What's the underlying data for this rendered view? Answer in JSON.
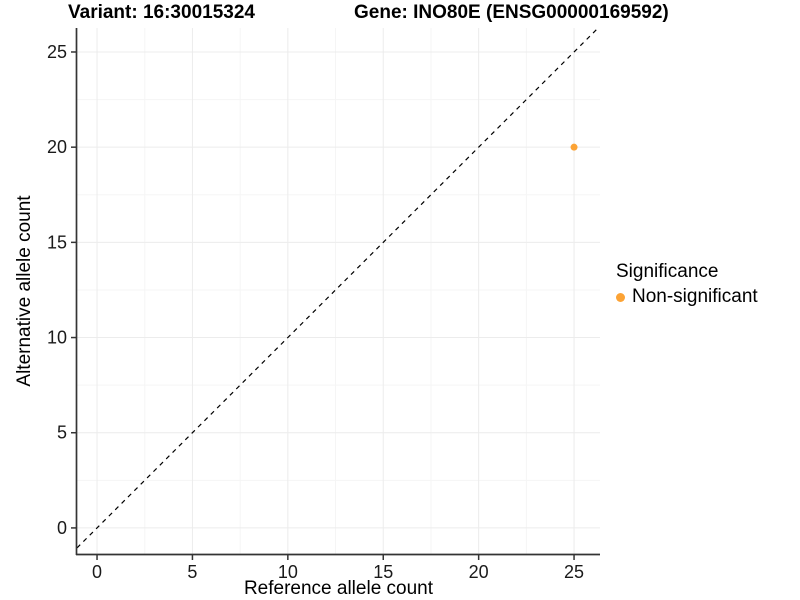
{
  "chart_data": {
    "type": "scatter",
    "title_left": "Variant: 16:30015324",
    "title_right": "Gene: INO80E (ENSG00000169592)",
    "xlabel": "Reference allele count",
    "ylabel": "Alternative allele count",
    "xlim": [
      -1.05,
      26.36
    ],
    "ylim": [
      -1.37,
      26.26
    ],
    "xticks": [
      0,
      5,
      10,
      15,
      20,
      25
    ],
    "yticks": [
      0,
      5,
      10,
      15,
      20,
      25
    ],
    "minor_xticks": [
      2.5,
      7.5,
      12.5,
      17.5,
      22.5
    ],
    "minor_yticks": [
      2.5,
      7.5,
      12.5,
      17.5,
      22.5
    ],
    "grid": "on",
    "identity_line": {
      "type": "y=x",
      "style": "dashed",
      "color": "#000000"
    },
    "series": [
      {
        "name": "Non-significant",
        "color": "#FCA335",
        "points": [
          {
            "x": 25,
            "y": 20
          }
        ]
      }
    ],
    "legend": {
      "title": "Significance",
      "position": "right",
      "entries": [
        {
          "label": "Non-significant",
          "color": "#FCA335"
        }
      ]
    }
  },
  "colors": {
    "background": "#FFFFFF",
    "axis_line": "#343434",
    "tick_text": "#1A1A1A",
    "grid_major": "#ECECEC",
    "grid_minor": "#F5F5F5",
    "identity_line": "#000000",
    "point": "#FCA335"
  }
}
